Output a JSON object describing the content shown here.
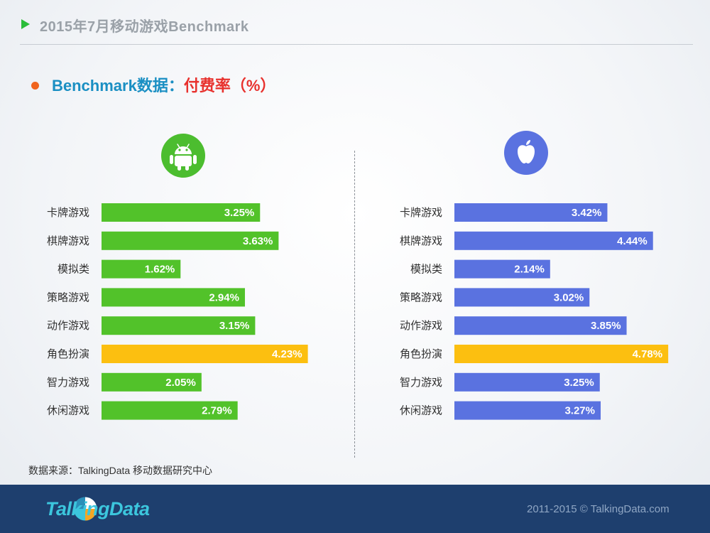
{
  "header": {
    "title": "2015年7月移动游戏Benchmark"
  },
  "subtitle": {
    "part_a": "Benchmark数据：",
    "part_b": "付费率（%）"
  },
  "icons": {
    "left": "android-icon",
    "right": "apple-icon"
  },
  "colors": {
    "android": "#52c22a",
    "ios": "#5a72e0",
    "highlight": "#fcbf10",
    "bottom_bar": "#1e3f6e"
  },
  "footer": {
    "source": "数据来源：TalkingData 移动数据研究中心",
    "logo": "TalkingData",
    "copyright": "2011-2015 © TalkingData.com"
  },
  "chart_data": [
    {
      "type": "bar",
      "orientation": "horizontal",
      "categories": [
        "卡牌游戏",
        "棋牌游戏",
        "模拟类",
        "策略游戏",
        "动作游戏",
        "角色扮演",
        "智力游戏",
        "休闲游戏"
      ],
      "values": [
        3.25,
        3.63,
        1.62,
        2.94,
        3.15,
        4.23,
        2.05,
        2.79
      ],
      "value_labels": [
        "3.25%",
        "3.63%",
        "1.62%",
        "2.94%",
        "3.15%",
        "4.23%",
        "2.05%",
        "2.79%"
      ],
      "highlight_index": 5,
      "color": "#52c22a",
      "xlim": [
        0,
        4.78
      ]
    },
    {
      "type": "bar",
      "orientation": "horizontal",
      "categories": [
        "卡牌游戏",
        "棋牌游戏",
        "模拟类",
        "策略游戏",
        "动作游戏",
        "角色扮演",
        "智力游戏",
        "休闲游戏"
      ],
      "values": [
        3.42,
        4.44,
        2.14,
        3.02,
        3.85,
        4.78,
        3.25,
        3.27
      ],
      "value_labels": [
        "3.42%",
        "4.44%",
        "2.14%",
        "3.02%",
        "3.85%",
        "4.78%",
        "3.25%",
        "3.27%"
      ],
      "highlight_index": 5,
      "color": "#5a72e0",
      "xlim": [
        0,
        4.78
      ]
    }
  ]
}
